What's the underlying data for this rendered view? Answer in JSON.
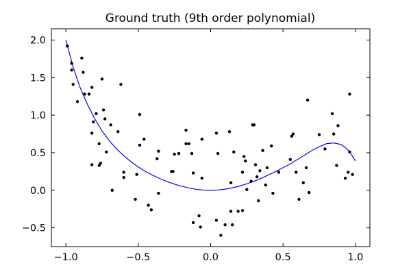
{
  "chart_data": {
    "type": "scatter",
    "title": "Ground truth (9th order polynomial)",
    "xlabel": "",
    "ylabel": "",
    "xlim": [
      -1.1,
      1.1
    ],
    "ylim": [
      -0.75,
      2.15
    ],
    "xticks": [
      -1.0,
      -0.5,
      0.0,
      0.5,
      1.0
    ],
    "xtick_labels": [
      "−1.0",
      "−0.5",
      "0.0",
      "0.5",
      "1.0"
    ],
    "yticks": [
      -0.5,
      0.0,
      0.5,
      1.0,
      1.5,
      2.0
    ],
    "ytick_labels": [
      "−0.5",
      "0.0",
      "0.5",
      "1.0",
      "1.5",
      "2.0"
    ],
    "grid": false,
    "legend": "none",
    "colors": {
      "points": "#000000",
      "curve": "#0000ff"
    },
    "series": [
      {
        "kind": "scatter",
        "points": [
          [
            -0.99,
            1.92
          ],
          [
            -0.96,
            1.69
          ],
          [
            -0.96,
            1.6
          ],
          [
            -0.95,
            1.41
          ],
          [
            -0.92,
            1.18
          ],
          [
            -0.89,
            1.76
          ],
          [
            -0.88,
            1.57
          ],
          [
            -0.87,
            1.28
          ],
          [
            -0.84,
            1.28
          ],
          [
            -0.82,
            1.37
          ],
          [
            -0.82,
            0.76
          ],
          [
            -0.82,
            0.34
          ],
          [
            -0.81,
            0.91
          ],
          [
            -0.79,
            1.02
          ],
          [
            -0.77,
            0.62
          ],
          [
            -0.77,
            0.33
          ],
          [
            -0.76,
            0.36
          ],
          [
            -0.75,
            1.48
          ],
          [
            -0.74,
            1.07
          ],
          [
            -0.73,
            0.95
          ],
          [
            -0.72,
            0.51
          ],
          [
            -0.69,
            0.87
          ],
          [
            -0.68,
            0.0
          ],
          [
            -0.64,
            0.78
          ],
          [
            -0.62,
            1.41
          ],
          [
            -0.6,
            0.24
          ],
          [
            -0.6,
            0.17
          ],
          [
            -0.52,
            -0.12
          ],
          [
            -0.51,
            0.21
          ],
          [
            -0.49,
            1.01
          ],
          [
            -0.49,
            0.6
          ],
          [
            -0.46,
            0.68
          ],
          [
            -0.43,
            -0.2
          ],
          [
            -0.41,
            -0.26
          ],
          [
            -0.37,
            0.42
          ],
          [
            -0.36,
            0.52
          ],
          [
            -0.36,
            -0.04
          ],
          [
            -0.27,
            0.25
          ],
          [
            -0.26,
            0.25
          ],
          [
            -0.25,
            0.48
          ],
          [
            -0.22,
            0.49
          ],
          [
            -0.17,
            0.8
          ],
          [
            -0.17,
            0.62
          ],
          [
            -0.15,
            0.62
          ],
          [
            -0.13,
            0.49
          ],
          [
            -0.12,
            0.23
          ],
          [
            -0.12,
            -0.43
          ],
          [
            -0.08,
            -0.34
          ],
          [
            -0.07,
            -0.49
          ],
          [
            -0.06,
            0.16
          ],
          [
            -0.06,
            0.68
          ],
          [
            0.04,
            -0.4
          ],
          [
            0.04,
            0.76
          ],
          [
            0.05,
            0.49
          ],
          [
            0.07,
            -0.6
          ],
          [
            0.1,
            -0.46
          ],
          [
            0.13,
            0.78
          ],
          [
            0.14,
            0.1
          ],
          [
            0.14,
            -0.28
          ],
          [
            0.15,
            -0.46
          ],
          [
            0.16,
            0.51
          ],
          [
            0.19,
            -0.28
          ],
          [
            0.22,
            -0.27
          ],
          [
            0.22,
            0.24
          ],
          [
            0.23,
            0.45
          ],
          [
            0.24,
            0.39
          ],
          [
            0.25,
            0.01
          ],
          [
            0.28,
            0.12
          ],
          [
            0.29,
            0.87
          ],
          [
            0.3,
            0.87
          ],
          [
            0.31,
            0.34
          ],
          [
            0.32,
            0.18
          ],
          [
            0.33,
            -0.14
          ],
          [
            0.34,
            0.26
          ],
          [
            0.36,
            0.53
          ],
          [
            0.38,
            0.07
          ],
          [
            0.39,
            0.3
          ],
          [
            0.42,
            0.59
          ],
          [
            0.43,
            -0.04
          ],
          [
            0.47,
            0.24
          ],
          [
            0.55,
            0.41
          ],
          [
            0.56,
            0.72
          ],
          [
            0.57,
            0.75
          ],
          [
            0.59,
            0.24
          ],
          [
            0.61,
            -0.12
          ],
          [
            0.64,
            0.1
          ],
          [
            0.66,
            0.3
          ],
          [
            0.67,
            1.2
          ],
          [
            0.68,
            -0.03
          ],
          [
            0.75,
            0.74
          ],
          [
            0.79,
            0.55
          ],
          [
            0.84,
            1.02
          ],
          [
            0.85,
            0.75
          ],
          [
            0.87,
            0.33
          ],
          [
            0.88,
            0.86
          ],
          [
            0.93,
            0.16
          ],
          [
            0.95,
            0.24
          ],
          [
            0.96,
            1.28
          ],
          [
            0.96,
            0.51
          ],
          [
            0.98,
            0.21
          ]
        ]
      },
      {
        "kind": "line",
        "points": [
          [
            -1.0,
            2.0
          ],
          [
            -0.95,
            1.64
          ],
          [
            -0.9,
            1.36
          ],
          [
            -0.85,
            1.14
          ],
          [
            -0.8,
            0.95
          ],
          [
            -0.75,
            0.79
          ],
          [
            -0.7,
            0.66
          ],
          [
            -0.65,
            0.55
          ],
          [
            -0.6,
            0.46
          ],
          [
            -0.55,
            0.38
          ],
          [
            -0.5,
            0.31
          ],
          [
            -0.45,
            0.25
          ],
          [
            -0.4,
            0.2
          ],
          [
            -0.35,
            0.155
          ],
          [
            -0.3,
            0.115
          ],
          [
            -0.25,
            0.082
          ],
          [
            -0.2,
            0.053
          ],
          [
            -0.15,
            0.03
          ],
          [
            -0.1,
            0.013
          ],
          [
            -0.05,
            0.003
          ],
          [
            0.0,
            0.0
          ],
          [
            0.05,
            0.004
          ],
          [
            0.1,
            0.015
          ],
          [
            0.15,
            0.032
          ],
          [
            0.2,
            0.056
          ],
          [
            0.25,
            0.086
          ],
          [
            0.3,
            0.12
          ],
          [
            0.35,
            0.16
          ],
          [
            0.4,
            0.205
          ],
          [
            0.45,
            0.25
          ],
          [
            0.5,
            0.3
          ],
          [
            0.55,
            0.35
          ],
          [
            0.6,
            0.41
          ],
          [
            0.65,
            0.47
          ],
          [
            0.7,
            0.53
          ],
          [
            0.75,
            0.58
          ],
          [
            0.8,
            0.62
          ],
          [
            0.85,
            0.63
          ],
          [
            0.9,
            0.61
          ],
          [
            0.93,
            0.57
          ],
          [
            0.96,
            0.51
          ],
          [
            0.98,
            0.45
          ],
          [
            1.0,
            0.39
          ]
        ]
      }
    ]
  }
}
